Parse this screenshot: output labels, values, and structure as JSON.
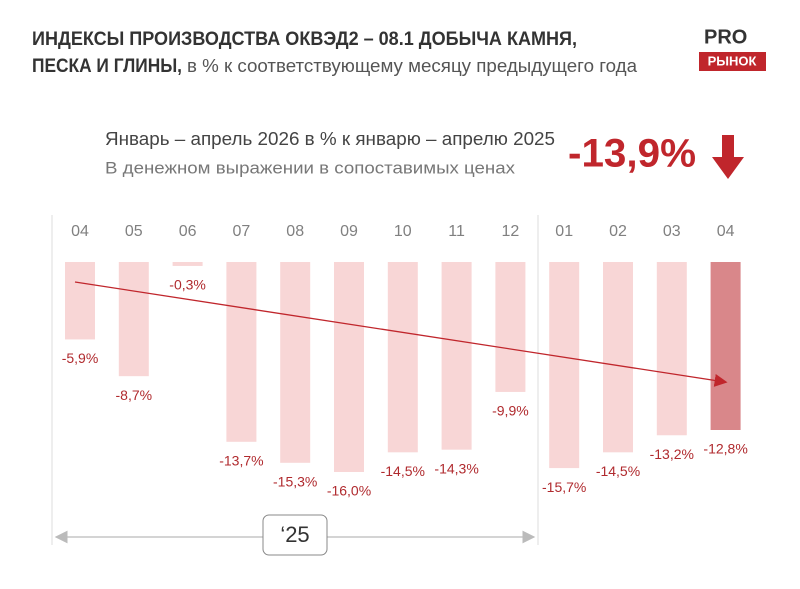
{
  "title_line1": "ИНДЕКСЫ ПРОИЗВОДСТВА ОКВЭД2 – 08.1 ДОБЫЧА КАМНЯ,",
  "title_line2": "ПЕСКА И ГЛИНЫ,",
  "subtitle": "в % к соответствующему месяцу предыдущего года",
  "logo": {
    "top": "PRO",
    "bottom": "РЫНОК"
  },
  "summary": {
    "line1": "Январь – апрель 2026 в % к январю – апрелю 2025",
    "line2": "В денежном выражении в сопоставимых ценах",
    "value": "-13,9%"
  },
  "period_label": "‘25",
  "chart_data": {
    "type": "bar",
    "categories": [
      "04",
      "05",
      "06",
      "07",
      "08",
      "09",
      "10",
      "11",
      "12",
      "01",
      "02",
      "03",
      "04"
    ],
    "values": [
      -5.9,
      -8.7,
      -0.3,
      -13.7,
      -15.3,
      -16.0,
      -14.5,
      -14.3,
      -9.9,
      -15.7,
      -14.5,
      -13.2,
      -12.8
    ],
    "value_labels": [
      "-5,9%",
      "-8,7%",
      "-0,3%",
      "-13,7%",
      "-15,3%",
      "-16,0%",
      "-14,5%",
      "-14,3%",
      "-9,9%",
      "-15,7%",
      "-14,5%",
      "-13,2%",
      "-12,8%"
    ],
    "colors": [
      "#f8d6d6",
      "#f8d6d6",
      "#f8d6d6",
      "#f8d6d6",
      "#f8d6d6",
      "#f8d6d6",
      "#f8d6d6",
      "#f8d6d6",
      "#f8d6d6",
      "#f8d6d6",
      "#f8d6d6",
      "#f8d6d6",
      "#d9878a"
    ]
  }
}
